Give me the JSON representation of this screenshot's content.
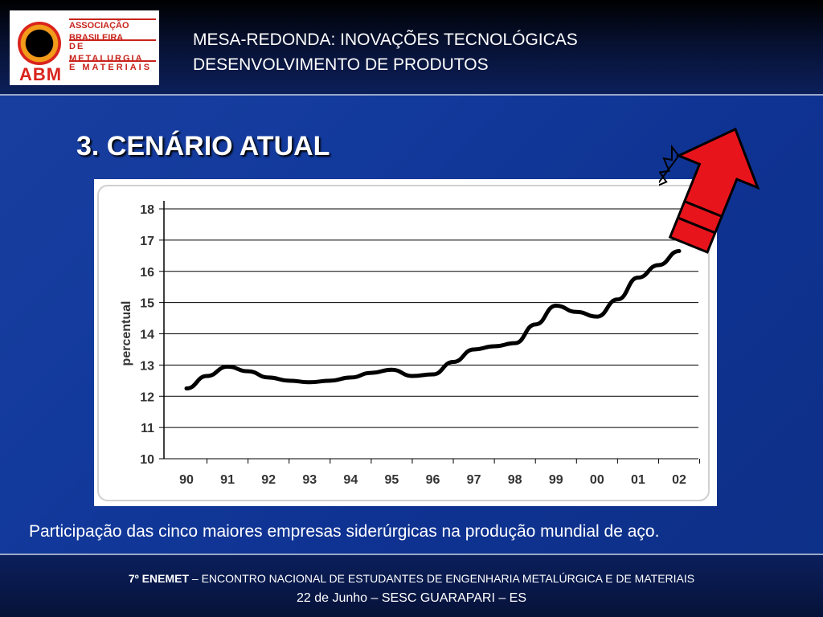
{
  "logo": {
    "abbr": "ABM",
    "line1": "ASSOCIAÇÃO BRASILEIRA",
    "line2": "DE METALURGIA",
    "line3": "E MATERIAIS"
  },
  "header": {
    "title_line1": "MESA-REDONDA: INOVAÇÕES TECNOLÓGICAS",
    "title_line2": "DESENVOLVIMENTO DE PRODUTOS"
  },
  "section_title": "3. CENÁRIO ATUAL",
  "caption": "Participação das cinco maiores empresas siderúrgicas na produção mundial de aço.",
  "footer": {
    "edition": "7º ENEMET",
    "event": " – ENCONTRO NACIONAL DE ESTUDANTES DE ENGENHARIA METALÚRGICA E DE MATERIAIS",
    "date_place": "22 de Junho – SESC GUARAPARI – ES"
  },
  "colors": {
    "arrow": "#e8141c",
    "line": "#000000"
  },
  "chart_data": {
    "type": "line",
    "ylabel": "percentual",
    "ylim": [
      10,
      18
    ],
    "yticks": [
      10,
      11,
      12,
      13,
      14,
      15,
      16,
      17,
      18
    ],
    "categories": [
      "90",
      "91",
      "92",
      "93",
      "94",
      "95",
      "96",
      "97",
      "98",
      "99",
      "00",
      "01",
      "02"
    ],
    "x": [
      90,
      90.5,
      91,
      91.5,
      92,
      92.5,
      93,
      93.5,
      94,
      94.5,
      95,
      95.5,
      96,
      96.5,
      97,
      97.5,
      98,
      98.5,
      99,
      99.5,
      100,
      100.5,
      101,
      101.5,
      102
    ],
    "values": [
      12.25,
      12.65,
      12.95,
      12.8,
      12.6,
      12.5,
      12.45,
      12.5,
      12.6,
      12.75,
      12.85,
      12.65,
      12.7,
      13.1,
      13.5,
      13.6,
      13.7,
      14.3,
      14.9,
      14.7,
      14.55,
      15.1,
      15.8,
      16.2,
      16.65
    ],
    "grid": true
  }
}
